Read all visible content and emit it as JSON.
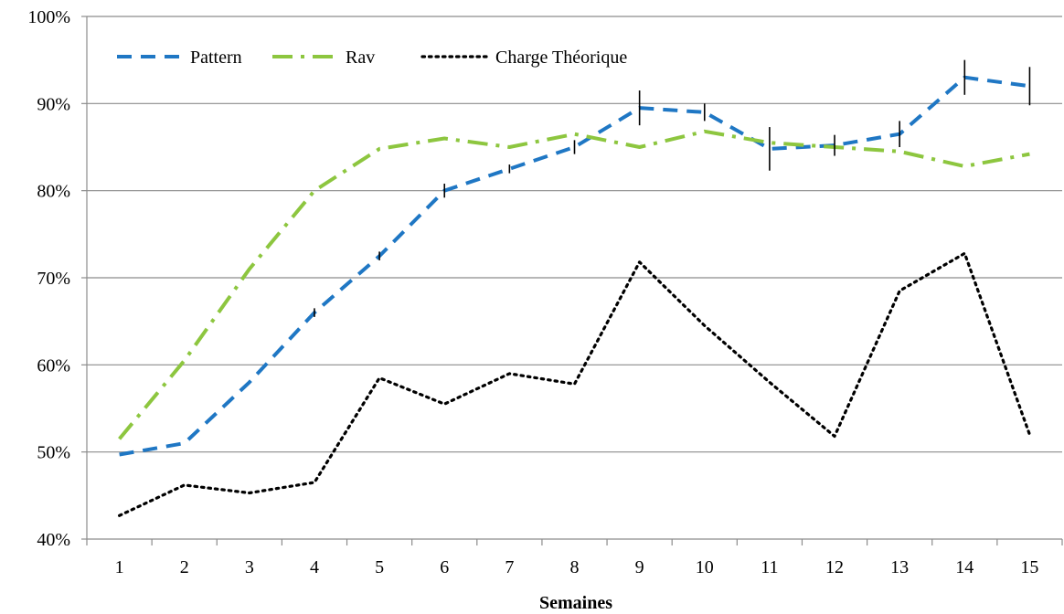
{
  "chart_data": {
    "type": "line",
    "title": "",
    "xlabel": "Semaines",
    "ylabel": "",
    "categories": [
      "1",
      "2",
      "3",
      "4",
      "5",
      "6",
      "7",
      "8",
      "9",
      "10",
      "11",
      "12",
      "13",
      "14",
      "15"
    ],
    "ylim": [
      0.4,
      1.0
    ],
    "yticks": [
      0.4,
      0.5,
      0.6,
      0.7,
      0.8,
      0.9,
      1.0
    ],
    "ytick_labels": [
      "40%",
      "50%",
      "60%",
      "70%",
      "80%",
      "90%",
      "100%"
    ],
    "grid": "horizontal",
    "legend_position": "top-left",
    "series": [
      {
        "name": "Pattern",
        "style": "dashed",
        "color": "#1f77c4",
        "values": [
          0.497,
          0.51,
          0.58,
          0.66,
          0.725,
          0.8,
          0.825,
          0.85,
          0.895,
          0.89,
          0.848,
          0.852,
          0.865,
          0.93,
          0.92
        ],
        "error": [
          0,
          0,
          0,
          0.005,
          0.005,
          0.008,
          0.005,
          0.008,
          0.02,
          0.01,
          0.025,
          0.012,
          0.015,
          0.02,
          0.022
        ]
      },
      {
        "name": "Rav",
        "style": "dashdot",
        "color": "#8dc63f",
        "values": [
          0.515,
          0.605,
          0.71,
          0.8,
          0.848,
          0.86,
          0.85,
          0.865,
          0.85,
          0.868,
          0.855,
          0.85,
          0.845,
          0.828,
          0.842
        ]
      },
      {
        "name": "Charge Théorique",
        "style": "dotted",
        "color": "#000000",
        "values": [
          0.427,
          0.462,
          0.453,
          0.465,
          0.585,
          0.555,
          0.59,
          0.578,
          0.718,
          0.645,
          0.58,
          0.518,
          0.685,
          0.728,
          0.52
        ]
      }
    ]
  }
}
